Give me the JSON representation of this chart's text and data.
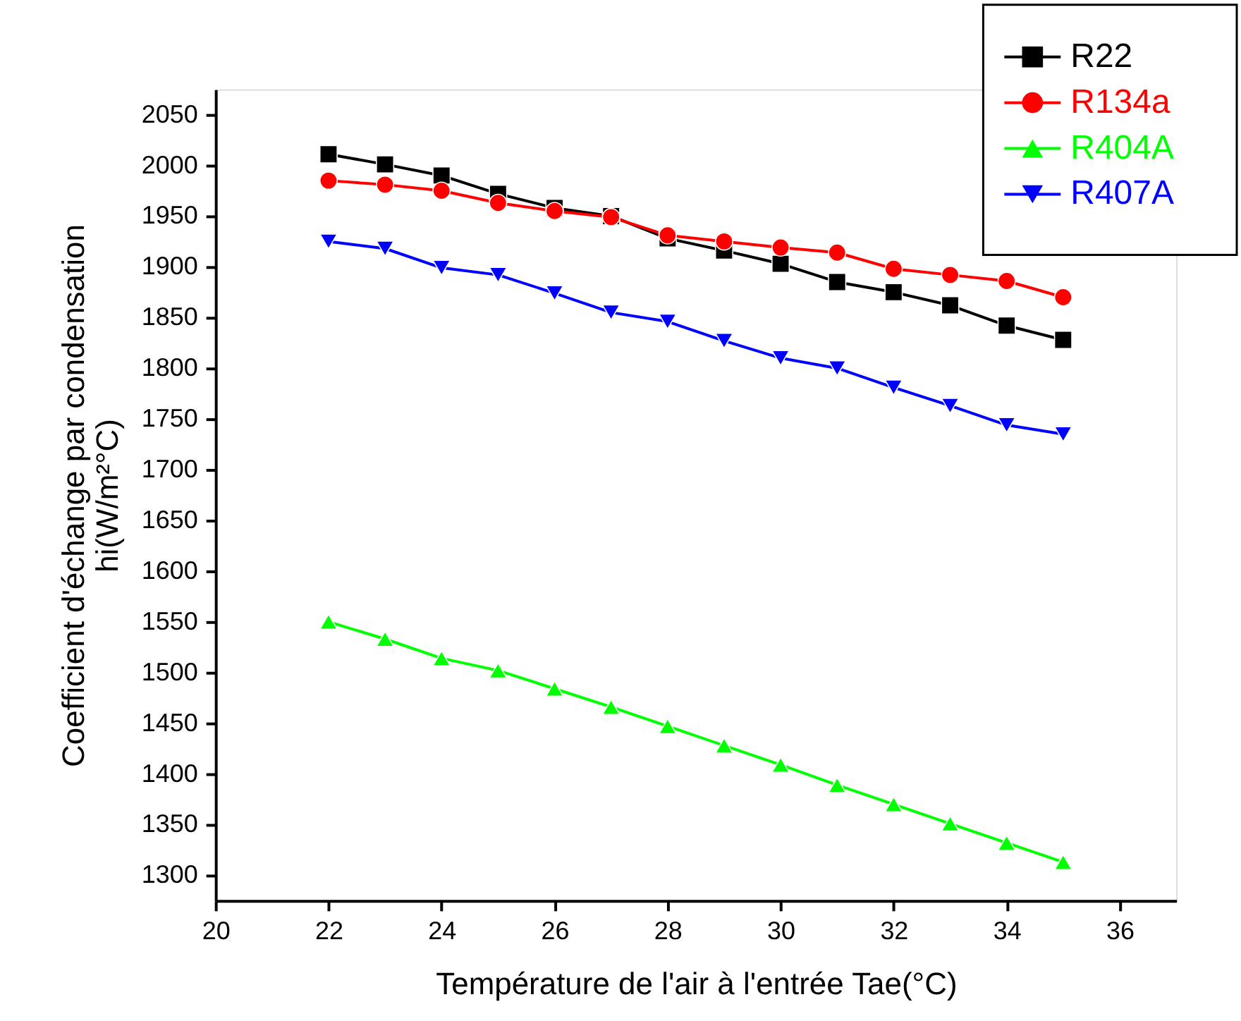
{
  "chart_data": {
    "type": "line",
    "xlabel": "Température de l'air à l'entrée Tae(°C)",
    "ylabel": "Coefficient d'échange par condensation\nhi(W/m²°C)",
    "x": [
      22,
      23,
      24,
      25,
      26,
      27,
      28,
      29,
      30,
      31,
      32,
      33,
      34,
      35
    ],
    "series": [
      {
        "name": "R22",
        "color": "#000000",
        "marker": "square",
        "values": [
          2011,
          2001,
          1990,
          1972,
          1958,
          1950,
          1928,
          1916,
          1903,
          1885,
          1875,
          1862,
          1842,
          1828
        ]
      },
      {
        "name": "R134a",
        "color": "#ff0000",
        "marker": "circle",
        "values": [
          1985,
          1981,
          1975,
          1963,
          1955,
          1949,
          1931,
          1925,
          1919,
          1914,
          1898,
          1892,
          1886,
          1870
        ]
      },
      {
        "name": "R404A",
        "color": "#00ff00",
        "marker": "triangle",
        "values": [
          1550,
          1533,
          1514,
          1502,
          1484,
          1466,
          1447,
          1428,
          1409,
          1389,
          1370,
          1351,
          1332,
          1313
        ]
      },
      {
        "name": "R407A",
        "color": "#0000ff",
        "marker": "triangle-down",
        "values": [
          1925,
          1918,
          1899,
          1892,
          1874,
          1855,
          1846,
          1827,
          1810,
          1800,
          1781,
          1763,
          1744,
          1735
        ]
      }
    ],
    "xlim": [
      20,
      37
    ],
    "xticks": [
      20,
      22,
      24,
      26,
      28,
      30,
      32,
      34,
      36
    ],
    "ylim": [
      1275,
      2075
    ],
    "yticks": [
      1300,
      1350,
      1400,
      1450,
      1500,
      1550,
      1600,
      1650,
      1700,
      1750,
      1800,
      1850,
      1900,
      1950,
      2000,
      2050
    ],
    "grid": false,
    "legend": "top right",
    "line_style": "solid"
  }
}
